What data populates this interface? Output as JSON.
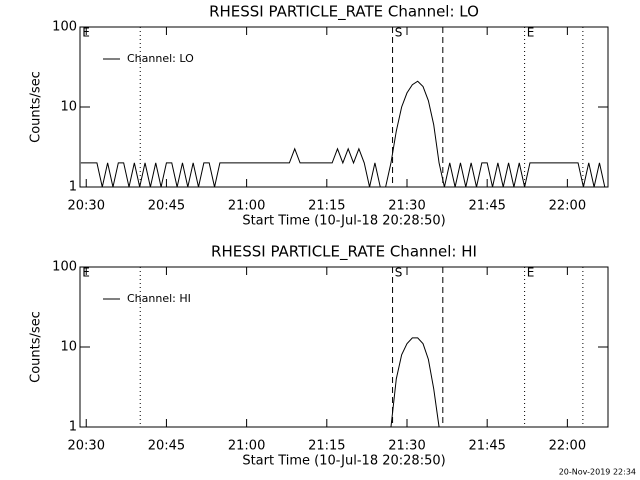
{
  "chart_data": [
    {
      "type": "line",
      "title": "RHESSI PARTICLE_RATE Channel: LO",
      "xlabel": "Start Time (10-Jul-18 20:28:50)",
      "ylabel": "Counts/sec",
      "ylog": true,
      "legend": "upper left",
      "xlim": [
        1228.833,
        1327.6
      ],
      "ylim": [
        1,
        100
      ],
      "xticks": [
        {
          "value": 1230,
          "label": "20:30"
        },
        {
          "value": 1245,
          "label": "20:45"
        },
        {
          "value": 1260,
          "label": "21:00"
        },
        {
          "value": 1275,
          "label": "21:15"
        },
        {
          "value": 1290,
          "label": "21:30"
        },
        {
          "value": 1305,
          "label": "21:45"
        },
        {
          "value": 1320,
          "label": "22:00"
        }
      ],
      "yticks": [
        1,
        10,
        100
      ],
      "markers": [
        {
          "x": 1228.833,
          "label": "E"
        },
        {
          "x": 1240.1,
          "style": "dotted"
        },
        {
          "x": 1287.3,
          "style": "dashed",
          "label": "S"
        },
        {
          "x": 1296.7,
          "style": "dashed"
        },
        {
          "x": 1312.0,
          "style": "dotted",
          "label": "E"
        },
        {
          "x": 1322.9,
          "style": "dotted"
        }
      ],
      "x": [
        1229,
        1230,
        1231,
        1232,
        1233,
        1234,
        1235,
        1236,
        1237,
        1238,
        1239,
        1240,
        1241,
        1242,
        1243,
        1244,
        1245,
        1246,
        1247,
        1248,
        1249,
        1250,
        1251,
        1252,
        1253,
        1254,
        1255,
        1256,
        1257,
        1258,
        1259,
        1260,
        1261,
        1262,
        1263,
        1264,
        1265,
        1266,
        1267,
        1268,
        1269,
        1270,
        1271,
        1272,
        1273,
        1274,
        1275,
        1276,
        1277,
        1278,
        1279,
        1280,
        1281,
        1282,
        1283,
        1284,
        1285,
        1286,
        1287,
        1288,
        1289,
        1290,
        1291,
        1292,
        1293,
        1294,
        1295,
        1296,
        1297,
        1298,
        1299,
        1300,
        1301,
        1302,
        1303,
        1304,
        1305,
        1306,
        1307,
        1308,
        1309,
        1310,
        1311,
        1312,
        1313,
        1314,
        1315,
        1316,
        1317,
        1318,
        1319,
        1320,
        1321,
        1322,
        1323,
        1324,
        1325,
        1326,
        1327
      ],
      "series": [
        {
          "name": "Channel: LO",
          "color": "#000000",
          "values": [
            2,
            2,
            2,
            2,
            1,
            2,
            1,
            2,
            2,
            1,
            2,
            1,
            2,
            1,
            2,
            1,
            2,
            2,
            1,
            2,
            1,
            2,
            1,
            2,
            2,
            1,
            2,
            2,
            2,
            2,
            2,
            2,
            2,
            2,
            2,
            2,
            2,
            2,
            2,
            2,
            3,
            2,
            2,
            2,
            2,
            2,
            2,
            2,
            3,
            2,
            3,
            2,
            3,
            2,
            1,
            2,
            1,
            1,
            2,
            5,
            10,
            15,
            19,
            21,
            18,
            12,
            6,
            2,
            1,
            2,
            1,
            2,
            1,
            2,
            1,
            2,
            2,
            1,
            2,
            1,
            2,
            1,
            2,
            1,
            2,
            2,
            2,
            2,
            2,
            2,
            2,
            2,
            2,
            2,
            1,
            2,
            1,
            2,
            1
          ]
        }
      ]
    },
    {
      "type": "line",
      "title": "RHESSI PARTICLE_RATE Channel: HI",
      "xlabel": "Start Time (10-Jul-18 20:28:50)",
      "ylabel": "Counts/sec",
      "ylog": true,
      "legend": "upper left",
      "xlim": [
        1228.833,
        1327.6
      ],
      "ylim": [
        1,
        100
      ],
      "xticks": [
        {
          "value": 1230,
          "label": "20:30"
        },
        {
          "value": 1245,
          "label": "20:45"
        },
        {
          "value": 1260,
          "label": "21:00"
        },
        {
          "value": 1275,
          "label": "21:15"
        },
        {
          "value": 1290,
          "label": "21:30"
        },
        {
          "value": 1305,
          "label": "21:45"
        },
        {
          "value": 1320,
          "label": "22:00"
        }
      ],
      "yticks": [
        1,
        10,
        100
      ],
      "markers": [
        {
          "x": 1228.833,
          "label": "E"
        },
        {
          "x": 1240.1,
          "style": "dotted"
        },
        {
          "x": 1287.3,
          "style": "dashed",
          "label": "S"
        },
        {
          "x": 1296.7,
          "style": "dashed"
        },
        {
          "x": 1312.0,
          "style": "dotted",
          "label": "E"
        },
        {
          "x": 1322.9,
          "style": "dotted"
        }
      ],
      "x": [
        1229,
        1230,
        1231,
        1232,
        1233,
        1234,
        1235,
        1236,
        1237,
        1238,
        1239,
        1240,
        1241,
        1242,
        1243,
        1244,
        1245,
        1246,
        1247,
        1248,
        1249,
        1250,
        1251,
        1252,
        1253,
        1254,
        1255,
        1256,
        1257,
        1258,
        1259,
        1260,
        1261,
        1262,
        1263,
        1264,
        1265,
        1266,
        1267,
        1268,
        1269,
        1270,
        1271,
        1272,
        1273,
        1274,
        1275,
        1276,
        1277,
        1278,
        1279,
        1280,
        1281,
        1282,
        1283,
        1284,
        1285,
        1286,
        1287,
        1288,
        1289,
        1290,
        1291,
        1292,
        1293,
        1294,
        1295,
        1296,
        1297,
        1298,
        1299,
        1300,
        1301,
        1302,
        1303,
        1304,
        1305,
        1306,
        1307,
        1308,
        1309,
        1310,
        1311,
        1312,
        1313,
        1314,
        1315,
        1316,
        1317,
        1318,
        1319,
        1320,
        1321,
        1322,
        1323,
        1324,
        1325,
        1326,
        1327
      ],
      "series": [
        {
          "name": "Channel: HI",
          "color": "#000000",
          "values": [
            null,
            null,
            null,
            null,
            null,
            null,
            null,
            null,
            null,
            null,
            null,
            null,
            null,
            null,
            null,
            null,
            null,
            null,
            null,
            null,
            null,
            null,
            null,
            null,
            null,
            null,
            null,
            null,
            null,
            null,
            null,
            null,
            null,
            null,
            null,
            null,
            null,
            null,
            null,
            null,
            null,
            null,
            null,
            null,
            null,
            null,
            null,
            null,
            null,
            null,
            null,
            null,
            null,
            null,
            null,
            null,
            null,
            null,
            1,
            4,
            8,
            11,
            13,
            13,
            11,
            7,
            3,
            1,
            null,
            null,
            null,
            null,
            null,
            null,
            null,
            null,
            null,
            null,
            null,
            null,
            null,
            null,
            null,
            null,
            null,
            null,
            null,
            null,
            null,
            null,
            null,
            null,
            null,
            null,
            null,
            null,
            null,
            null,
            null
          ]
        }
      ]
    }
  ],
  "timestamp": "20-Nov-2019 22:34"
}
